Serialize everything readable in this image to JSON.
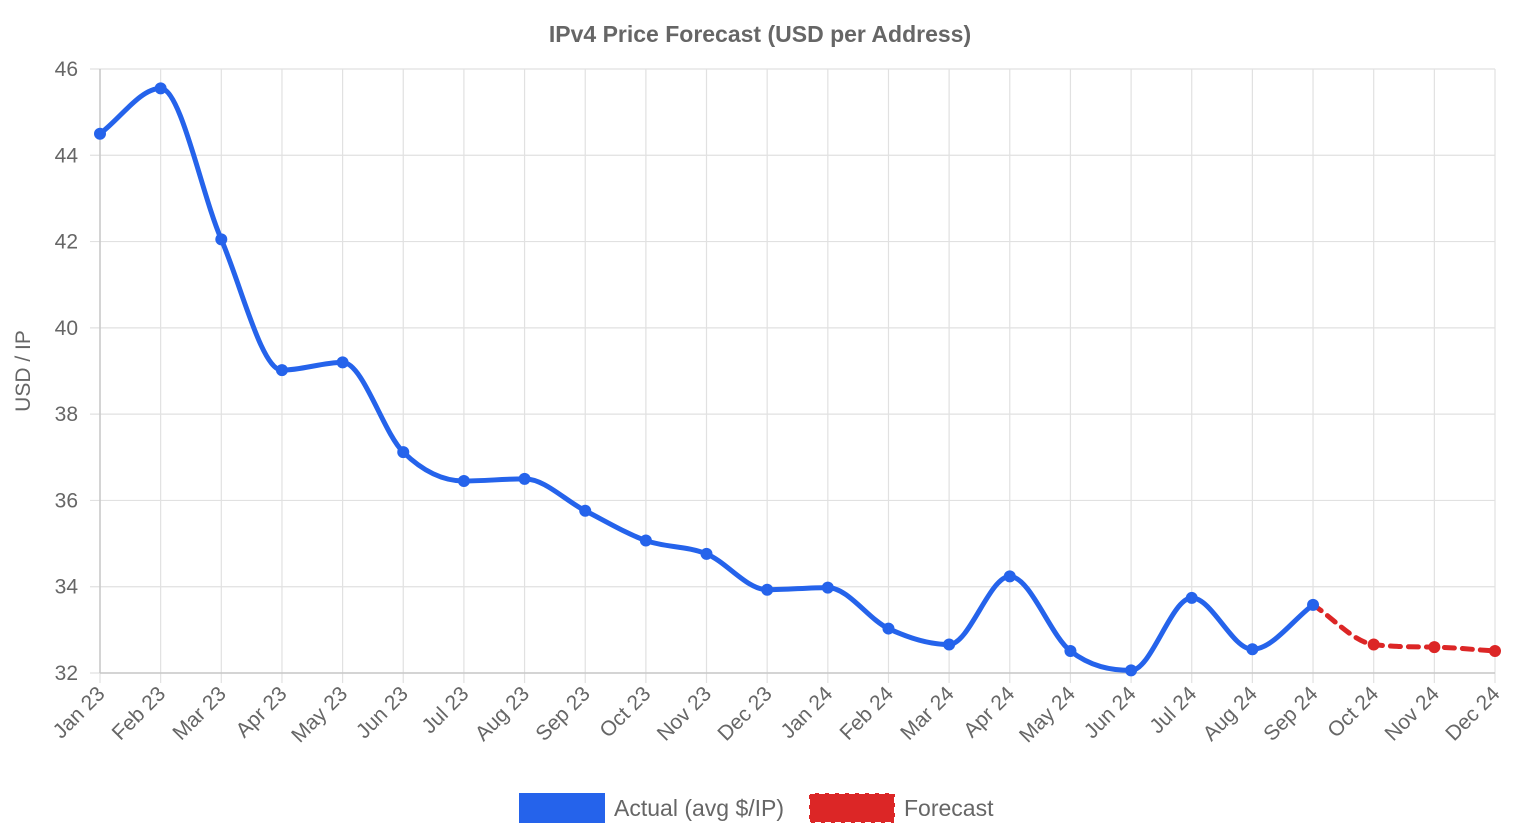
{
  "chart_data": {
    "type": "line",
    "title": "IPv4 Price Forecast (USD per Address)",
    "ylabel": "USD / IP",
    "xlabel": "",
    "ylim": [
      32,
      46
    ],
    "yticks": [
      "32",
      "34",
      "36",
      "38",
      "40",
      "42",
      "44",
      "46"
    ],
    "categories": [
      "Jan 23",
      "Feb 23",
      "Mar 23",
      "Apr 23",
      "May 23",
      "Jun 23",
      "Jul 23",
      "Aug 23",
      "Sep 23",
      "Oct 23",
      "Nov 23",
      "Dec 23",
      "Jan 24",
      "Feb 24",
      "Mar 24",
      "Apr 24",
      "May 24",
      "Jun 24",
      "Jul 24",
      "Aug 24",
      "Sep 24",
      "Oct 24",
      "Nov 24",
      "Dec 24"
    ],
    "grid": true,
    "legend_position": "bottom",
    "series": [
      {
        "name": "Actual (avg $/IP)",
        "color": "#2563eb",
        "style": "solid",
        "values": [
          44.5,
          45.55,
          42.05,
          39.02,
          39.2,
          37.12,
          36.45,
          36.5,
          35.76,
          35.07,
          34.76,
          33.93,
          33.98,
          33.03,
          32.66,
          34.24,
          32.51,
          32.06,
          33.74,
          32.55,
          33.58,
          null,
          null,
          null
        ]
      },
      {
        "name": "Forecast",
        "color": "#dc2626",
        "style": "dashed",
        "values": [
          null,
          null,
          null,
          null,
          null,
          null,
          null,
          null,
          null,
          null,
          null,
          null,
          null,
          null,
          null,
          null,
          null,
          null,
          null,
          null,
          33.58,
          32.66,
          32.6,
          32.51
        ]
      }
    ]
  }
}
